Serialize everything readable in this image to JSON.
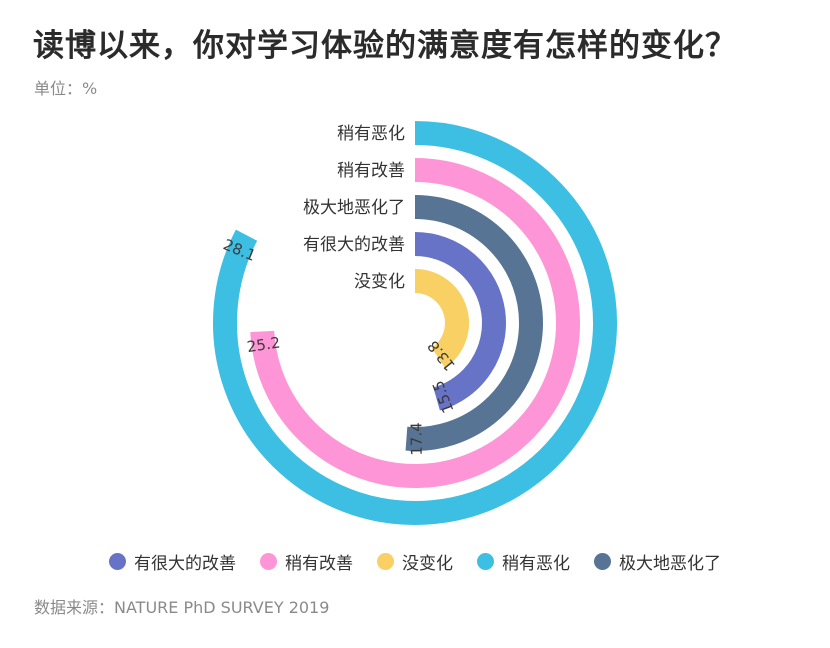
{
  "title": "读博以来，你对学习体验的满意度有怎样的变化？",
  "unit": "单位：%",
  "source": "数据来源：NATURE PhD SURVEY 2019",
  "chart_data": {
    "type": "radial-bar",
    "max_value": 34,
    "rings": [
      {
        "category": "稍有恶化",
        "value": 28.1,
        "color": "#3dbfe4"
      },
      {
        "category": "稍有改善",
        "value": 25.2,
        "color": "#fd95d6"
      },
      {
        "category": "极大地恶化了",
        "value": 17.4,
        "color": "#587494"
      },
      {
        "category": "有很大的改善",
        "value": 15.5,
        "color": "#6773c7"
      },
      {
        "category": "没变化",
        "value": 13.8,
        "color": "#f8d063"
      }
    ],
    "legend": [
      {
        "label": "有很大的改善",
        "color": "#6773c7"
      },
      {
        "label": "稍有改善",
        "color": "#fd95d6"
      },
      {
        "label": "没变化",
        "color": "#f8d063"
      },
      {
        "label": "稍有恶化",
        "color": "#3dbfe4"
      },
      {
        "label": "极大地恶化了",
        "color": "#587494"
      }
    ]
  }
}
